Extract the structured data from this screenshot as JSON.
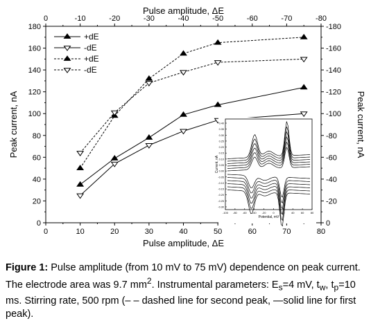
{
  "chart_data": {
    "type": "line",
    "bottom_axis": {
      "label": "Pulse amplitude, ΔE",
      "ticks": [
        0,
        10,
        20,
        30,
        40,
        50,
        60,
        70,
        80
      ],
      "range": [
        0,
        80
      ]
    },
    "top_axis": {
      "label": "Pulse amplitude, ΔE",
      "ticks": [
        0,
        -10,
        -20,
        -30,
        -40,
        -50,
        -60,
        -70,
        -80
      ]
    },
    "left_axis": {
      "label": "Peak current, nA",
      "ticks": [
        0,
        20,
        40,
        60,
        80,
        100,
        120,
        140,
        160,
        180
      ],
      "range": [
        0,
        180
      ]
    },
    "right_axis": {
      "label": "Peak current, nA",
      "ticks": [
        0,
        -20,
        -40,
        -60,
        -80,
        -100,
        -120,
        -140,
        -160,
        -180
      ]
    },
    "x": [
      10,
      20,
      30,
      40,
      50,
      75
    ],
    "series": [
      {
        "name": "+dE",
        "marker": "triangle-up",
        "line": "solid",
        "values": [
          35,
          59,
          78,
          99,
          108,
          124
        ]
      },
      {
        "name": "-dE",
        "marker": "triangle-down",
        "line": "solid",
        "values": [
          25,
          54,
          71,
          84,
          94,
          100
        ]
      },
      {
        "name": "+dE",
        "marker": "triangle-up",
        "line": "dashed",
        "values": [
          50,
          98,
          132,
          155,
          165,
          170
        ]
      },
      {
        "name": "-dE",
        "marker": "triangle-down",
        "line": "dashed",
        "values": [
          64,
          101,
          128,
          138,
          147,
          150
        ]
      }
    ],
    "legend_placement": "top-left",
    "inset": {
      "type": "line",
      "xlabel": "Potential, mV",
      "ylabel": "Current, nA",
      "x_ticks": [
        "-100",
        "-80",
        "-60",
        "-40",
        "-20",
        "0",
        "20",
        "40",
        "60",
        "80"
      ],
      "y_ticks": [
        "0.40",
        "0.35",
        "0.30",
        "0.25",
        "0.20",
        "0.15",
        "0.10",
        "0.05",
        "0.00",
        "-0.05",
        "-0.10",
        "-0.15",
        "-0.20",
        "-0.25",
        "-0.30"
      ]
    }
  },
  "caption": {
    "label": "Figure 1:",
    "text_1": " Pulse amplitude (from 10 mV to 75 mV) dependence on peak current. The electrode area was 9.7 mm",
    "sup_2": "2",
    "text_2": ". Instrumental parameters: E",
    "sub_s": "s",
    "text_3": "=4 mV, t",
    "sub_w": "w",
    "text_4": ", t",
    "sub_p": "p",
    "text_5": "=10 ms. Stirring rate, 500 rpm (– – dashed line for second peak, —solid line for first peak)."
  }
}
